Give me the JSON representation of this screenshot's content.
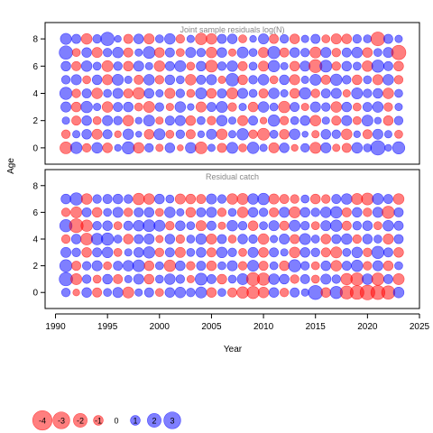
{
  "chart_data": {
    "type": "scatter",
    "subtype": "bubble-residuals",
    "xlabel": "Year",
    "ylabel": "Age",
    "xlim": [
      1989,
      2025
    ],
    "ylim": [
      -1.2,
      9.2
    ],
    "x_ticks": [
      1990,
      1995,
      2000,
      2005,
      2010,
      2015,
      2020,
      2025
    ],
    "y_ticks": [
      0,
      2,
      4,
      6,
      8
    ],
    "years": [
      1991,
      1992,
      1993,
      1994,
      1995,
      1996,
      1997,
      1998,
      1999,
      2000,
      2001,
      2002,
      2003,
      2004,
      2005,
      2006,
      2007,
      2008,
      2009,
      2010,
      2011,
      2012,
      2013,
      2014,
      2015,
      2016,
      2017,
      2018,
      2019,
      2020,
      2021,
      2022,
      2023
    ],
    "ages": [
      0,
      1,
      2,
      3,
      4,
      5,
      6,
      7,
      8
    ],
    "colors": {
      "positive": "#0000ff",
      "negative": "#ff0000",
      "opacity": 0.5
    },
    "panels": [
      {
        "title": "Joint sample residuals log(N)",
        "ages": [
          0,
          1,
          2,
          3,
          4,
          5,
          6,
          7,
          8
        ],
        "residuals": [
          [
            -1.5,
            1.4,
            -0.8,
            1.2,
            -1.0,
            0.5,
            1.6,
            -1.2,
            0.8,
            -0.6,
            1.0,
            -0.4,
            1.2,
            -1.5,
            0.6,
            -0.9,
            1.3,
            -0.7,
            1.4,
            0.6,
            -1.1,
            1.0,
            -0.5,
            0.8,
            -1.3,
            1.1,
            -0.6,
            -0.9,
            1.2,
            0.7,
            2.2,
            0.5,
            1.6
          ],
          [
            -0.8,
            0.6,
            1.0,
            -1.1,
            0.9,
            -0.5,
            1.2,
            0.4,
            -1.0,
            1.3,
            -0.7,
            0.8,
            -0.9,
            0.5,
            1.1,
            -1.2,
            0.6,
            1.4,
            -0.8,
            -1.5,
            0.7,
            -1.0,
            1.2,
            0.4,
            -0.6,
            1.0,
            0.8,
            -1.2,
            0.5,
            -0.9,
            1.1,
            0.6,
            -0.7
          ],
          [
            0.6,
            -0.9,
            1.0,
            -0.7,
            1.1,
            0.8,
            -1.2,
            0.5,
            1.3,
            -0.6,
            0.9,
            1.1,
            -1.0,
            0.7,
            -0.8,
            1.2,
            0.6,
            -1.1,
            0.9,
            -0.5,
            1.4,
            -0.8,
            0.7,
            1.0,
            -1.2,
            0.6,
            -0.9,
            1.1,
            -0.7,
            1.3,
            0.5,
            -1.0,
            0.8
          ],
          [
            1.1,
            -1.0,
            1.4,
            0.6,
            -1.2,
            0.9,
            1.0,
            -0.7,
            -1.3,
            0.8,
            -0.6,
            1.2,
            0.5,
            -1.1,
            0.9,
            1.3,
            -0.8,
            0.6,
            -1.0,
            1.2,
            0.7,
            -1.4,
            0.9,
            -0.6,
            1.1,
            0.8,
            -1.2,
            1.0,
            -0.7,
            0.9,
            1.2,
            -0.8,
            0.6
          ],
          [
            1.6,
            -0.8,
            0.9,
            -1.2,
            0.7,
            1.1,
            -0.9,
            -1.4,
            1.0,
            0.6,
            -1.1,
            0.8,
            -0.7,
            1.3,
            -1.0,
            0.9,
            -1.3,
            1.1,
            0.7,
            -0.9,
            1.2,
            0.6,
            -1.0,
            1.4,
            -0.8,
            0.9,
            1.1,
            -0.6,
            1.3,
            0.8,
            1.0,
            -1.2,
            0.7
          ],
          [
            0.8,
            1.1,
            -0.7,
            1.0,
            -1.1,
            1.3,
            0.6,
            -0.9,
            1.2,
            -0.8,
            1.0,
            0.7,
            -1.2,
            0.9,
            1.1,
            -0.6,
            1.7,
            -1.0,
            0.8,
            1.2,
            -0.7,
            1.0,
            -1.1,
            0.6,
            1.3,
            -0.9,
            1.4,
            0.8,
            -1.0,
            0.7,
            -1.1,
            1.2,
            -0.8
          ],
          [
            1.0,
            -0.9,
            1.2,
            0.7,
            -1.3,
            0.8,
            -1.0,
            1.1,
            0.6,
            -1.2,
            0.9,
            1.3,
            -0.7,
            1.0,
            -1.5,
            0.8,
            1.2,
            -0.9,
            0.7,
            -1.1,
            1.4,
            0.6,
            -1.0,
            1.1,
            -1.8,
            1.5,
            -0.8,
            1.0,
            0.7,
            -1.2,
            1.6,
            0.9,
            -1.0
          ],
          [
            1.9,
            -0.7,
            1.0,
            -1.1,
            0.8,
            1.2,
            -0.9,
            0.6,
            1.5,
            -1.0,
            0.9,
            -0.7,
            1.1,
            0.8,
            -1.2,
            1.0,
            -0.6,
            1.3,
            0.7,
            -1.1,
            1.6,
            -0.9,
            1.0,
            0.8,
            -1.3,
            1.1,
            -0.8,
            0.9,
            1.2,
            -1.0,
            0.7,
            1.1,
            -2.2
          ],
          [
            1.3,
            0.9,
            -1.2,
            0.8,
            1.9,
            0.5,
            -0.9,
            1.0,
            -1.1,
            0.7,
            1.2,
            -0.8,
            0.6,
            -1.4,
            -1.2,
            0.9,
            1.0,
            -0.7,
            0.5,
            1.1,
            -0.9,
            0.8,
            -1.0,
            0.6,
            0.9,
            -0.7,
            -1.1,
            -1.0,
            0.8,
            0.7,
            -2.0,
            0.9,
            0.6
          ]
        ]
      },
      {
        "title": "Residual catch",
        "ages": [
          0,
          1,
          2,
          3,
          4,
          5,
          6,
          7
        ],
        "residuals": [
          [
            0.8,
            -0.5,
            1.0,
            -0.9,
            0.7,
            1.1,
            -1.3,
            0.6,
            0.9,
            -0.7,
            1.0,
            1.2,
            0.8,
            1.3,
            -1.0,
            0.7,
            -0.9,
            -1.4,
            -1.6,
            -1.2,
            1.0,
            -0.8,
            0.9,
            0.6,
            2.1,
            -1.0,
            1.6,
            -1.8,
            -2.0,
            -2.3,
            -2.1,
            -1.9,
            1.2
          ],
          [
            1.9,
            -1.3,
            0.8,
            -0.7,
            1.0,
            -0.9,
            0.6,
            1.1,
            -1.0,
            0.7,
            1.2,
            0.8,
            -0.6,
            1.5,
            0.9,
            -1.0,
            0.7,
            1.3,
            -1.8,
            -1.6,
            1.2,
            1.0,
            -0.8,
            0.9,
            -0.7,
            1.1,
            0.8,
            -1.4,
            -1.7,
            1.2,
            -1.6,
            0.9,
            -1.3
          ],
          [
            1.6,
            -0.9,
            0.8,
            1.1,
            -0.7,
            0.9,
            1.2,
            1.5,
            -1.0,
            0.7,
            -1.4,
            1.0,
            -0.8,
            0.9,
            -1.0,
            0.7,
            1.1,
            -0.8,
            1.3,
            -0.9,
            0.7,
            -1.0,
            1.6,
            0.8,
            -0.7,
            1.0,
            -1.2,
            0.9,
            1.4,
            -0.8,
            1.1,
            -1.0,
            0.7
          ],
          [
            1.1,
            0.8,
            -1.0,
            0.9,
            1.2,
            -0.7,
            0.6,
            1.0,
            1.4,
            -0.8,
            0.9,
            -1.1,
            0.7,
            1.0,
            -0.9,
            1.2,
            0.8,
            -0.7,
            1.1,
            -1.0,
            0.9,
            0.6,
            -1.2,
            1.0,
            0.8,
            -0.9,
            -1.3,
            0.7,
            1.2,
            -0.8,
            1.6,
            0.9,
            -1.0
          ],
          [
            -0.8,
            1.0,
            -1.5,
            1.4,
            1.6,
            0.7,
            -1.0,
            0.9,
            1.1,
            -0.6,
            1.0,
            -0.8,
            0.7,
            1.2,
            -1.1,
            0.9,
            -0.7,
            1.0,
            0.8,
            -1.2,
            0.6,
            1.1,
            -0.9,
            1.3,
            0.7,
            -1.0,
            0.9,
            1.2,
            -0.8,
            1.0,
            0.7,
            -1.1,
            0.9
          ],
          [
            1.6,
            -2.0,
            -1.4,
            0.8,
            1.0,
            -0.7,
            0.9,
            1.2,
            1.5,
            1.3,
            -0.8,
            1.0,
            0.7,
            -1.1,
            0.9,
            -0.6,
            1.2,
            0.8,
            -1.0,
            0.7,
            1.1,
            -0.9,
            1.3,
            0.8,
            -0.7,
            1.1,
            1.4,
            -0.9,
            0.8,
            1.0,
            -0.7,
            1.2,
            0.9
          ],
          [
            -0.8,
            -1.3,
            0.9,
            -1.0,
            0.7,
            1.1,
            -0.8,
            0.9,
            1.0,
            -0.7,
            1.2,
            0.6,
            -1.0,
            0.9,
            1.1,
            -0.8,
            0.7,
            -1.2,
            1.0,
            0.8,
            -0.9,
            1.1,
            -1.3,
            1.0,
            0.8,
            1.2,
            1.4,
            -0.9,
            1.0,
            -0.8,
            1.1,
            -1.6,
            0.9
          ],
          [
            1.0,
            1.6,
            -1.2,
            0.8,
            0.9,
            1.0,
            0.8,
            -1.4,
            -1.2,
            1.0,
            0.7,
            -1.1,
            -1.0,
            -0.9,
            1.1,
            0.8,
            -1.2,
            -1.3,
            1.2,
            1.4,
            -1.1,
            -0.9,
            -0.8,
            0.7,
            -1.0,
            -0.8,
            0.9,
            1.2,
            -1.3,
            -1.5,
            1.3,
            0.9,
            -1.2
          ]
        ]
      }
    ],
    "legend": {
      "values": [
        -4,
        -3,
        -2,
        -1,
        0,
        1,
        2,
        3
      ],
      "labels": [
        "-4",
        "-3",
        "-2",
        "-1",
        "0",
        "1",
        "2",
        "3"
      ],
      "placement": "bottom-left"
    }
  }
}
